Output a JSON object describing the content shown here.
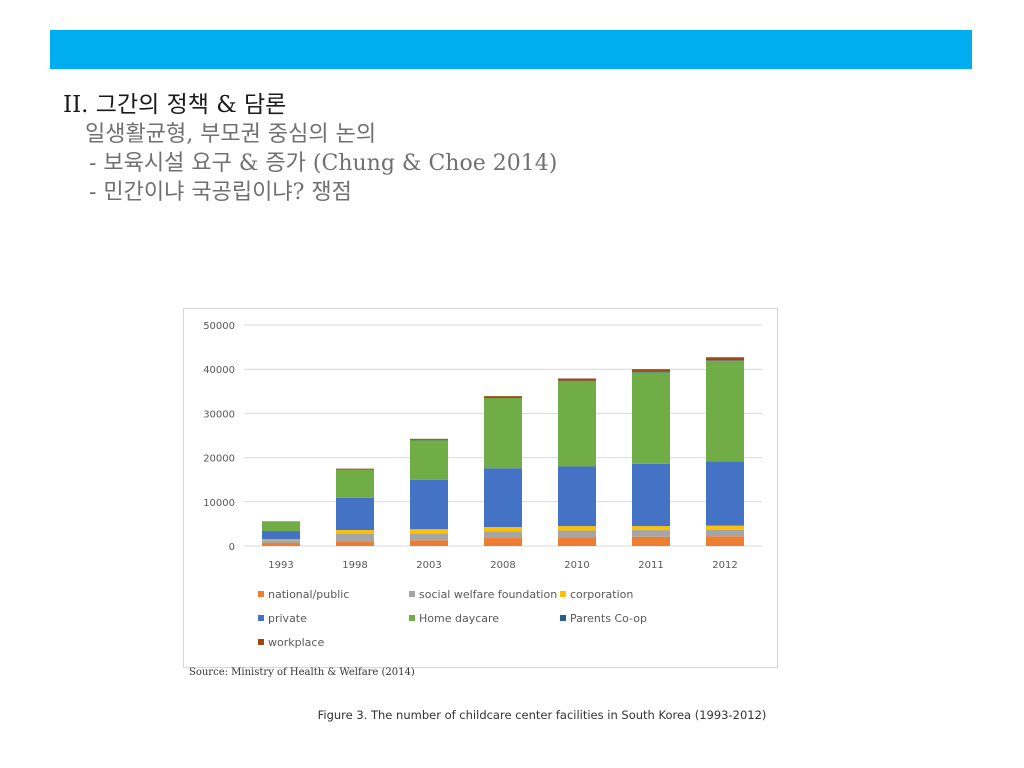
{
  "slide": {
    "band_color": "#00AEEF",
    "heading": "II. 그간의 정책 & 담론",
    "lines": [
      "일생활균형, 부모권 중심의 논의",
      "- 보육시설 요구 & 증가 (Chung & Choe 2014)",
      "- 민간이냐 국공립이냐? 쟁점"
    ]
  },
  "figure": {
    "source": "Source: Ministry of Health & Welfare (2014)",
    "caption": "Figure 3. The number of childcare center facilities in South Korea (1993-2012)"
  },
  "chart_data": {
    "type": "bar",
    "stacked": true,
    "categories": [
      "1993",
      "1998",
      "2003",
      "2008",
      "2010",
      "2011",
      "2012"
    ],
    "ylim": [
      0,
      50000
    ],
    "yticks": [
      "0",
      "10000",
      "20000",
      "30000",
      "40000",
      "50000"
    ],
    "grid": true,
    "legend_position": "bottom",
    "series": [
      {
        "name": "national/public",
        "color": "#ED7D31",
        "values": [
          700,
          1000,
          1300,
          1800,
          2000,
          2100,
          2200
        ]
      },
      {
        "name": "social welfare foundation",
        "color": "#A5A5A5",
        "values": [
          600,
          1800,
          1500,
          1500,
          1500,
          1500,
          1500
        ]
      },
      {
        "name": "corporation",
        "color": "#FFC000",
        "values": [
          200,
          800,
          1000,
          1000,
          1000,
          900,
          900
        ]
      },
      {
        "name": "private",
        "color": "#4472C4",
        "values": [
          1900,
          7300,
          11200,
          13300,
          13500,
          14100,
          14500
        ]
      },
      {
        "name": "Home daycare",
        "color": "#70AD47",
        "values": [
          2100,
          6400,
          9000,
          15900,
          19300,
          20700,
          22800
        ]
      },
      {
        "name": "Parents Co-op",
        "color": "#255E91",
        "values": [
          0,
          0,
          50,
          100,
          100,
          100,
          100
        ]
      },
      {
        "name": "workplace",
        "color": "#9E480E",
        "values": [
          50,
          200,
          200,
          300,
          500,
          600,
          700
        ]
      }
    ]
  }
}
